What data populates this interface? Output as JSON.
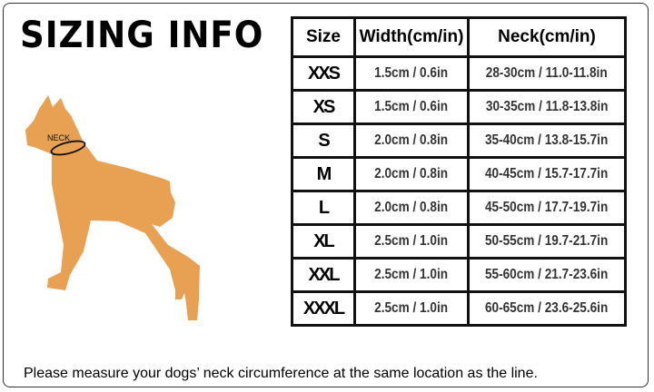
{
  "title": "SIZING INFO",
  "dog": {
    "neck_label": "NECK",
    "color": "#E8A052"
  },
  "table": {
    "headers": [
      "Size",
      "Width(cm/in)",
      "Neck(cm/in)"
    ],
    "rows": [
      {
        "size": "XXS",
        "width": "1.5cm / 0.6in",
        "neck": "28-30cm / 11.0-11.8in"
      },
      {
        "size": "XS",
        "width": "1.5cm / 0.6in",
        "neck": "30-35cm / 11.8-13.8in"
      },
      {
        "size": "S",
        "width": "2.0cm / 0.8in",
        "neck": "35-40cm / 13.8-15.7in"
      },
      {
        "size": "M",
        "width": "2.0cm / 0.8in",
        "neck": "40-45cm / 15.7-17.7in"
      },
      {
        "size": "L",
        "width": "2.0cm / 0.8in",
        "neck": "45-50cm / 17.7-19.7in"
      },
      {
        "size": "XL",
        "width": "2.5cm / 1.0in",
        "neck": "50-55cm / 19.7-21.7in"
      },
      {
        "size": "XXL",
        "width": "2.5cm / 1.0in",
        "neck": "55-60cm / 21.7-23.6in"
      },
      {
        "size": "XXXL",
        "width": "2.5cm / 1.0in",
        "neck": "60-65cm / 23.6-25.6in"
      }
    ]
  },
  "footer": "Please measure your dogs’  neck circumference at the same location as the line."
}
